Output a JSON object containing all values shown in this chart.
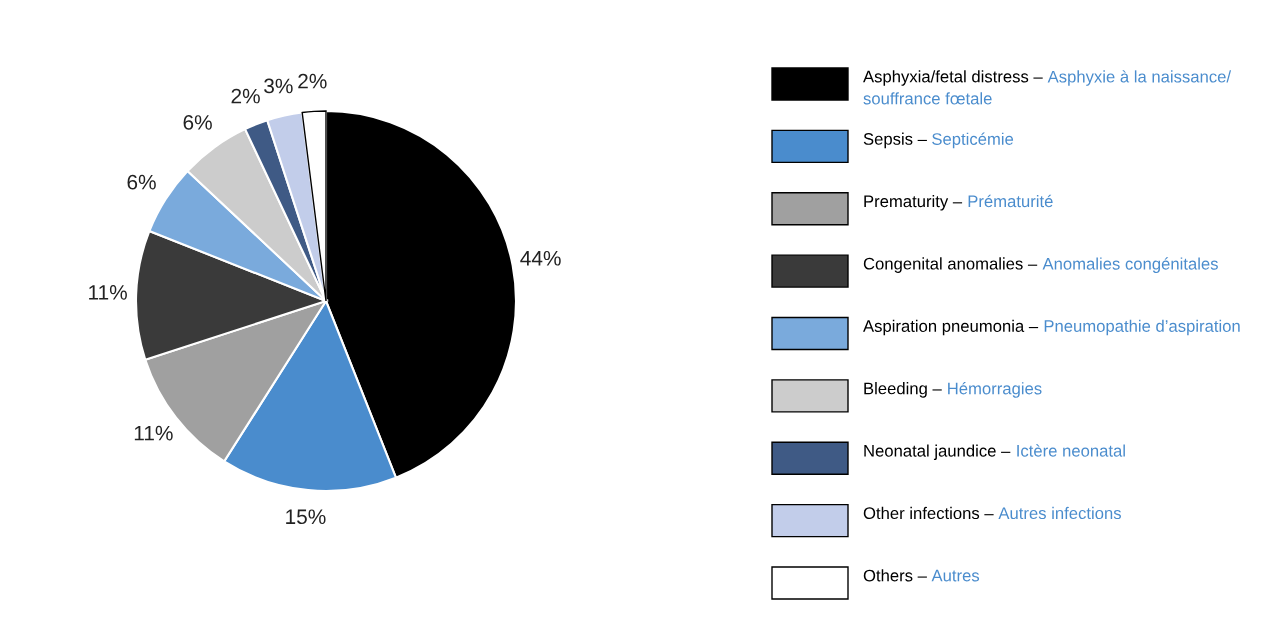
{
  "chart_data": {
    "type": "pie",
    "categories": [
      "Asphyxia/fetal distress – Asphyxie à la naissance/ souffrance fœtale",
      "Sepsis – Septicémie",
      "Prematurity – Prématurité",
      "Congenital anomalies – Anomalies congénitales",
      "Aspiration pneumonia – Pneumopathie d’aspiration",
      "Bleeding – Hémorragies",
      "Neonatal jaundice – Ictère neonatal",
      "Other infections – Autres infections",
      "Others – Autres"
    ],
    "values": [
      44,
      15,
      11,
      11,
      6,
      6,
      2,
      3,
      2
    ],
    "colors": [
      "#000000",
      "#4a8ccd",
      "#a0a0a0",
      "#3a3a3a",
      "#7aaadc",
      "#cccccc",
      "#3f5a85",
      "#c2cdea",
      "#ffffff"
    ],
    "value_labels": [
      "44%",
      "15%",
      "11%",
      "11%",
      "6%",
      "6%",
      "2%",
      "3%",
      "2%"
    ],
    "legend": "right"
  }
}
